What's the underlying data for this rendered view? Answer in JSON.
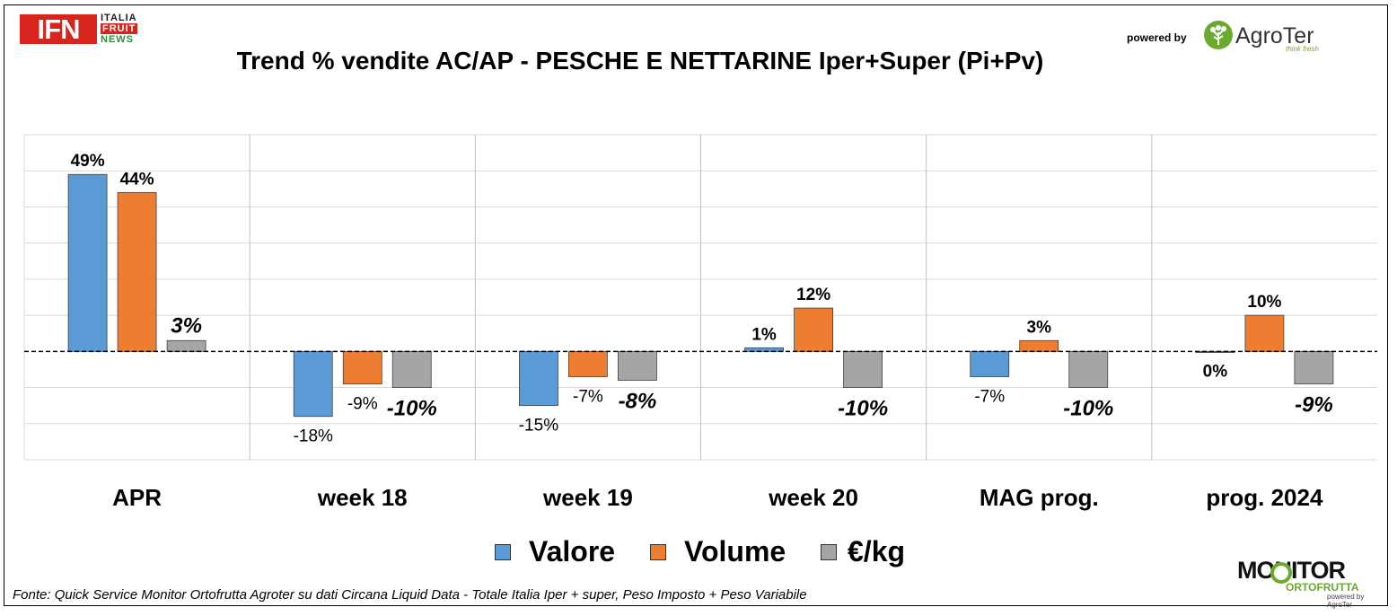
{
  "header": {
    "title": "Trend % vendite AC/AP - PESCHE E NETTARINE Iper+Super (Pi+Pv)",
    "ifn_logo": {
      "main": "IFN",
      "line1": "ITALIA",
      "line2": "FRUIT",
      "line3": "NEWS"
    },
    "powered_by": "powered by",
    "agroter": {
      "name": "AgroTer",
      "tagline": "think fresh"
    }
  },
  "chart_data": {
    "type": "bar",
    "categories": [
      "APR",
      "week 18",
      "week 19",
      "week 20",
      "MAG prog.",
      "prog. 2024"
    ],
    "series": [
      {
        "name": "Valore",
        "color": "#5b9bd5",
        "values": [
          49,
          -18,
          -15,
          1,
          -7,
          0
        ],
        "labels": [
          "49%",
          "-18%",
          "-15%",
          "1%",
          "-7%",
          "0%"
        ],
        "label_style": "normal"
      },
      {
        "name": "Volume",
        "color": "#ed7d31",
        "values": [
          44,
          -9,
          -7,
          12,
          3,
          10
        ],
        "labels": [
          "44%",
          "-9%",
          "-7%",
          "12%",
          "3%",
          "10%"
        ],
        "label_style": "normal"
      },
      {
        "name": "€/kg",
        "color": "#a5a5a5",
        "values": [
          3,
          -10,
          -8,
          -10,
          -10,
          -9
        ],
        "labels": [
          "3%",
          "-10%",
          "-8%",
          "-10%",
          "-10%",
          "-9%"
        ],
        "label_style": "bold-italic"
      }
    ],
    "ylim": [
      -30,
      60
    ],
    "grid": true,
    "zero_line": "dashed",
    "legend_position": "bottom"
  },
  "footer": {
    "source": "Fonte: Quick Service Monitor Ortofrutta Agroter su dati Circana Liquid Data - Totale Italia Iper + super, Peso Imposto + Peso Variabile",
    "monitor_logo": {
      "main": "MONITOR",
      "sub": "ORTOFRUTTA",
      "by": "powered by AgroTer"
    }
  }
}
